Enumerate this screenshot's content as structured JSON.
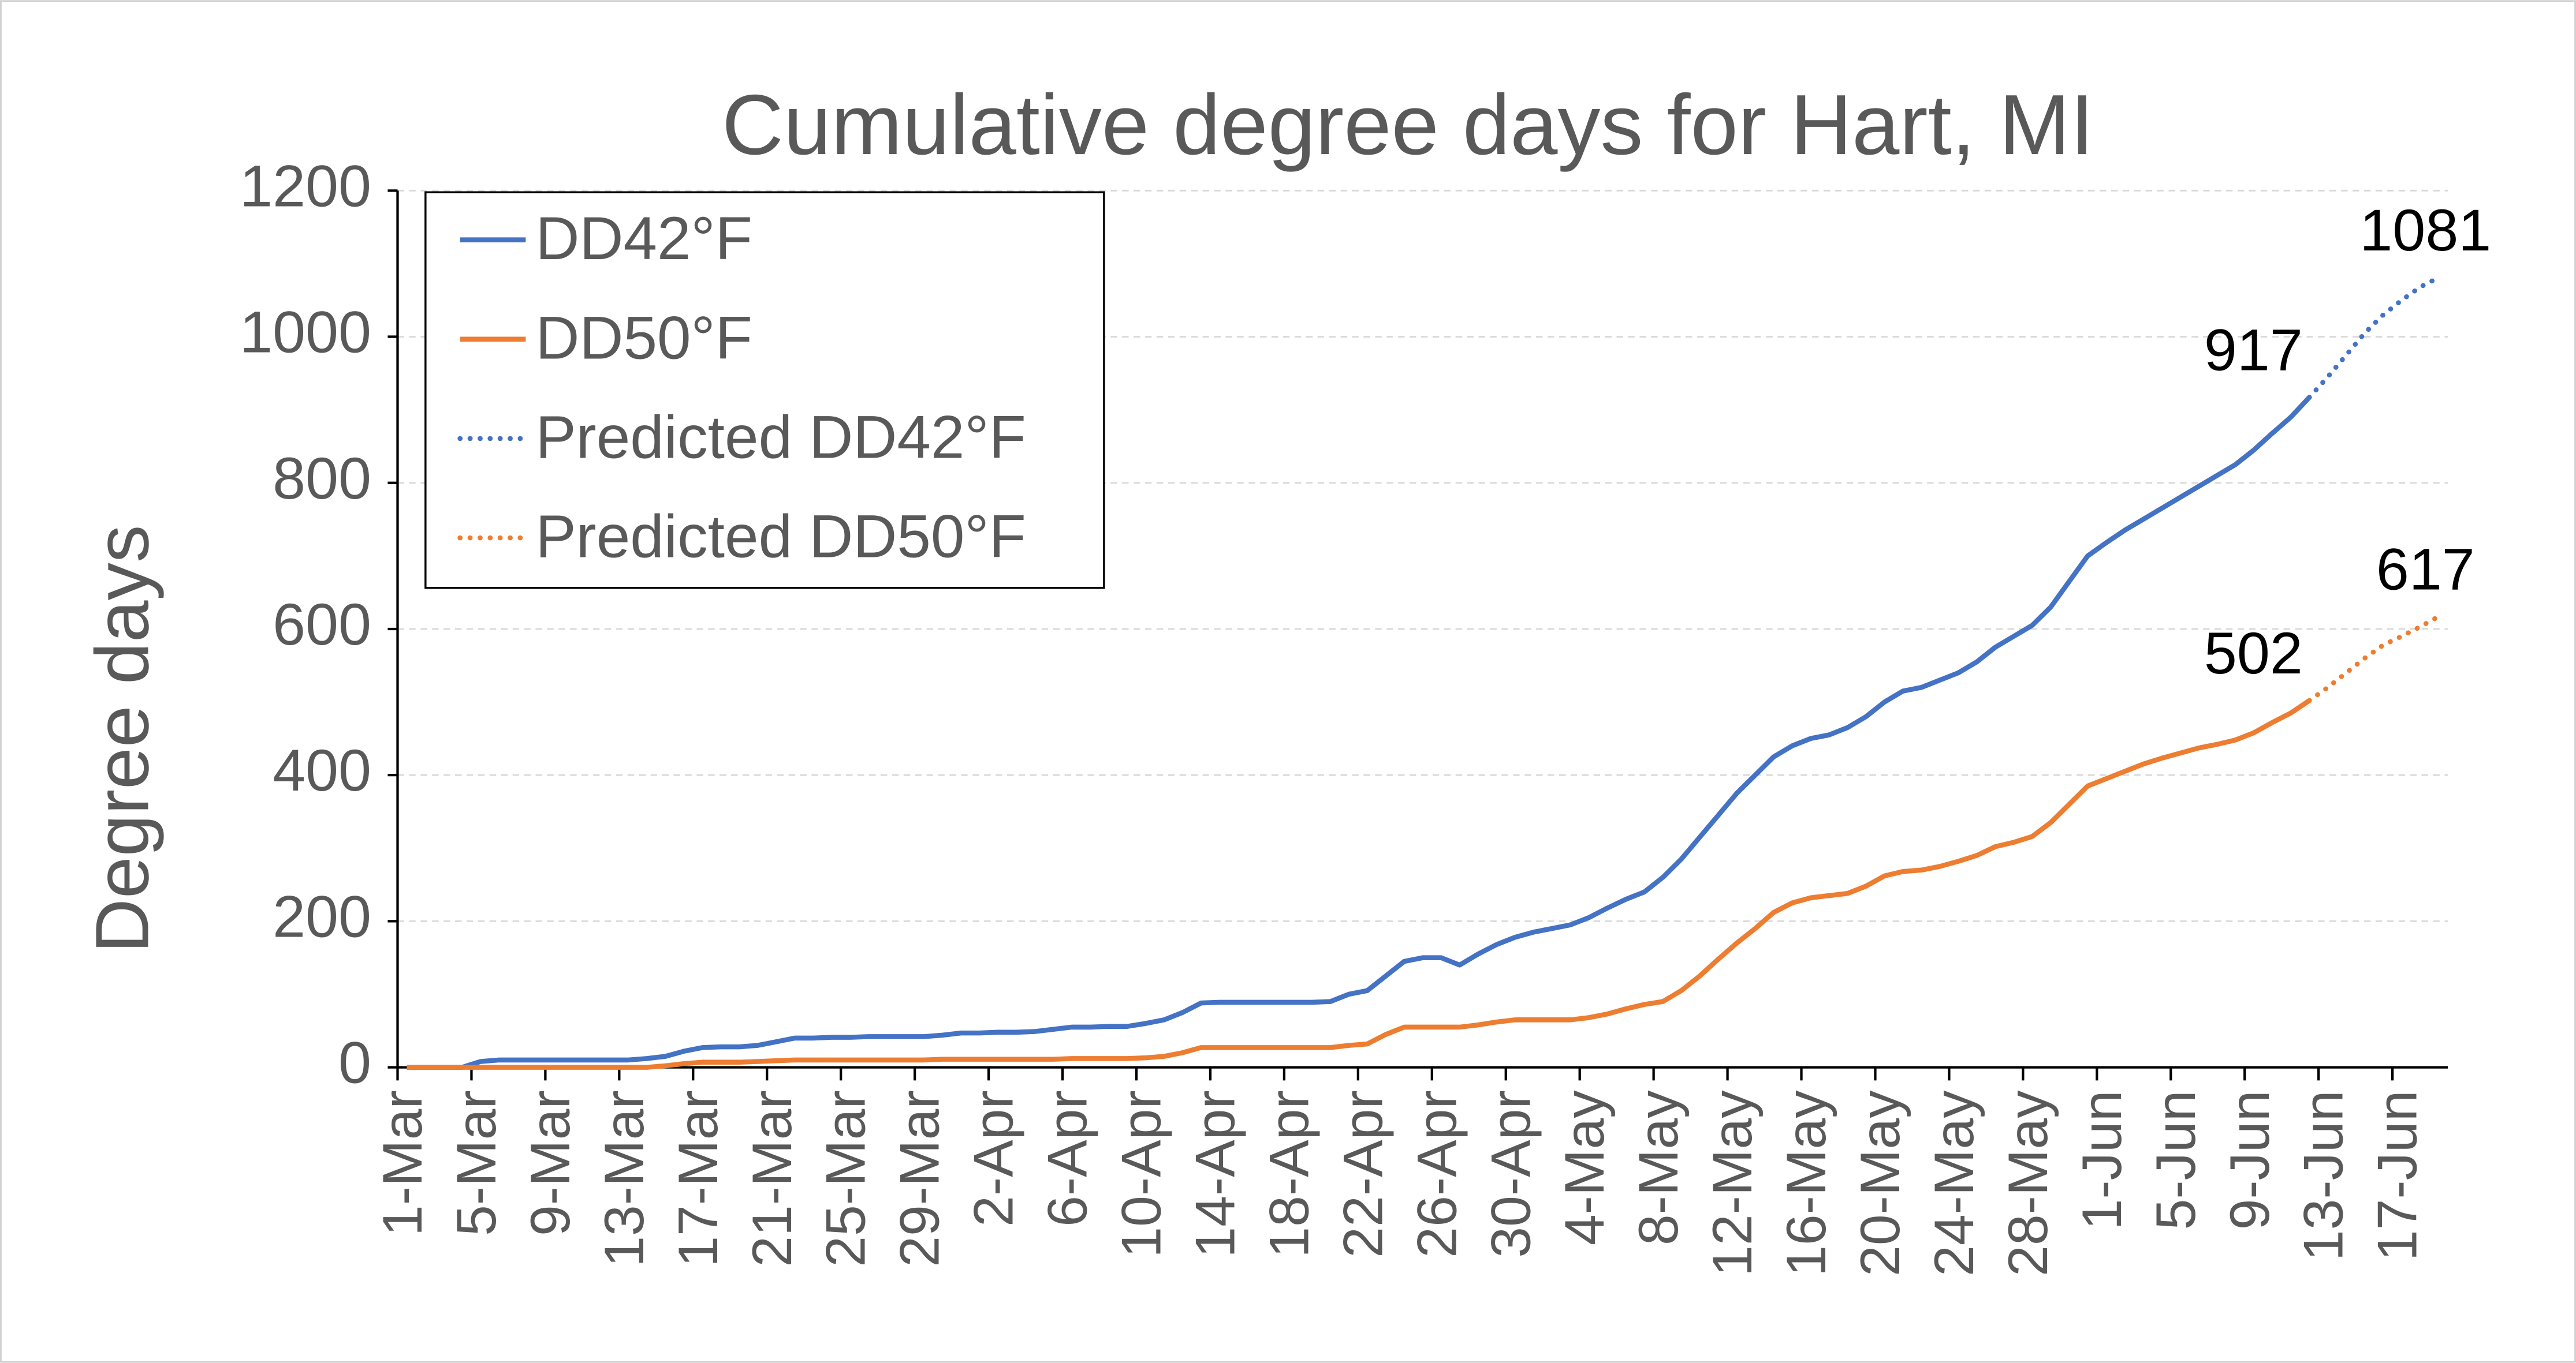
{
  "chart_data": {
    "type": "line",
    "title": "Cumulative degree days for Hart, MI",
    "y_label": "Degree days",
    "categories": [
      "1-Mar",
      null,
      null,
      null,
      "5-Mar",
      null,
      null,
      null,
      "9-Mar",
      null,
      null,
      null,
      "13-Mar",
      null,
      null,
      null,
      "17-Mar",
      null,
      null,
      null,
      "21-Mar",
      null,
      null,
      null,
      "25-Mar",
      null,
      null,
      null,
      "29-Mar",
      null,
      null,
      null,
      "2-Apr",
      null,
      null,
      null,
      "6-Apr",
      null,
      null,
      null,
      "10-Apr",
      null,
      null,
      null,
      "14-Apr",
      null,
      null,
      null,
      "18-Apr",
      null,
      null,
      null,
      "22-Apr",
      null,
      null,
      null,
      "26-Apr",
      null,
      null,
      null,
      "30-Apr",
      null,
      null,
      null,
      "4-May",
      null,
      null,
      null,
      "8-May",
      null,
      null,
      null,
      "12-May",
      null,
      null,
      null,
      "16-May",
      null,
      null,
      null,
      "20-May",
      null,
      null,
      null,
      "24-May",
      null,
      null,
      null,
      "28-May",
      null,
      null,
      null,
      "1-Jun",
      null,
      null,
      null,
      "5-Jun",
      null,
      null,
      null,
      "9-Jun",
      null,
      null,
      null,
      "13-Jun",
      null,
      null,
      null,
      "17-Jun",
      null,
      null
    ],
    "series": [
      {
        "name": "DD42°F",
        "color": "#4472c4",
        "line_style": "solid",
        "values": [
          0,
          0,
          0,
          0,
          8,
          10,
          10,
          10,
          10,
          10,
          10,
          10,
          10,
          12,
          15,
          22,
          27,
          28,
          28,
          30,
          35,
          40,
          40,
          41,
          41,
          42,
          42,
          42,
          42,
          44,
          47,
          47,
          48,
          48,
          49,
          52,
          55,
          55,
          56,
          56,
          60,
          65,
          75,
          88,
          89,
          89,
          89,
          89,
          89,
          89,
          90,
          100,
          105,
          125,
          145,
          150,
          150,
          140,
          155,
          168,
          178,
          185,
          190,
          195,
          205,
          218,
          230,
          240,
          260,
          285,
          315,
          345,
          375,
          400,
          425,
          440,
          450,
          455,
          465,
          480,
          500,
          515,
          520,
          530,
          540,
          555,
          575,
          590,
          605,
          630,
          665,
          700,
          718,
          735,
          750,
          765,
          780,
          795,
          810,
          825,
          845,
          868,
          890,
          917,
          null,
          null,
          null,
          null,
          null,
          null,
          null
        ]
      },
      {
        "name": "DD50°F",
        "color": "#ed7d31",
        "line_style": "solid",
        "values": [
          0,
          0,
          0,
          0,
          0,
          0,
          0,
          0,
          0,
          0,
          0,
          0,
          0,
          0,
          2,
          5,
          7,
          7,
          7,
          8,
          9,
          10,
          10,
          10,
          10,
          10,
          10,
          10,
          10,
          11,
          11,
          11,
          11,
          11,
          11,
          11,
          12,
          12,
          12,
          12,
          13,
          15,
          20,
          27,
          27,
          27,
          27,
          27,
          27,
          27,
          27,
          30,
          32,
          45,
          55,
          55,
          55,
          55,
          58,
          62,
          65,
          65,
          65,
          65,
          68,
          73,
          80,
          86,
          90,
          105,
          125,
          148,
          170,
          190,
          212,
          225,
          232,
          235,
          238,
          248,
          262,
          268,
          270,
          275,
          282,
          290,
          302,
          308,
          316,
          335,
          360,
          385,
          395,
          405,
          415,
          423,
          430,
          437,
          442,
          448,
          458,
          472,
          485,
          502,
          null,
          null,
          null,
          null,
          null,
          null,
          null
        ]
      },
      {
        "name": "Predicted DD42°F",
        "color": "#4472c4",
        "line_style": "dotted",
        "values": [
          null,
          null,
          null,
          null,
          null,
          null,
          null,
          null,
          null,
          null,
          null,
          null,
          null,
          null,
          null,
          null,
          null,
          null,
          null,
          null,
          null,
          null,
          null,
          null,
          null,
          null,
          null,
          null,
          null,
          null,
          null,
          null,
          null,
          null,
          null,
          null,
          null,
          null,
          null,
          null,
          null,
          null,
          null,
          null,
          null,
          null,
          null,
          null,
          null,
          null,
          null,
          null,
          null,
          null,
          null,
          null,
          null,
          null,
          null,
          null,
          null,
          null,
          null,
          null,
          null,
          null,
          null,
          null,
          null,
          null,
          null,
          null,
          null,
          null,
          null,
          null,
          null,
          null,
          null,
          null,
          null,
          null,
          null,
          null,
          null,
          null,
          null,
          null,
          null,
          null,
          null,
          null,
          null,
          null,
          null,
          null,
          null,
          null,
          null,
          null,
          null,
          null,
          null,
          917,
          945,
          975,
          1005,
          1030,
          1050,
          1068,
          1081
        ]
      },
      {
        "name": "Predicted DD50°F",
        "color": "#ed7d31",
        "line_style": "dotted",
        "values": [
          null,
          null,
          null,
          null,
          null,
          null,
          null,
          null,
          null,
          null,
          null,
          null,
          null,
          null,
          null,
          null,
          null,
          null,
          null,
          null,
          null,
          null,
          null,
          null,
          null,
          null,
          null,
          null,
          null,
          null,
          null,
          null,
          null,
          null,
          null,
          null,
          null,
          null,
          null,
          null,
          null,
          null,
          null,
          null,
          null,
          null,
          null,
          null,
          null,
          null,
          null,
          null,
          null,
          null,
          null,
          null,
          null,
          null,
          null,
          null,
          null,
          null,
          null,
          null,
          null,
          null,
          null,
          null,
          null,
          null,
          null,
          null,
          null,
          null,
          null,
          null,
          null,
          null,
          null,
          null,
          null,
          null,
          null,
          null,
          null,
          null,
          null,
          null,
          null,
          null,
          null,
          null,
          null,
          null,
          null,
          null,
          null,
          null,
          null,
          null,
          null,
          null,
          null,
          502,
          520,
          540,
          560,
          578,
          590,
          603,
          617
        ]
      }
    ],
    "ylim": [
      0,
      1200
    ],
    "yticks": [
      0,
      200,
      400,
      600,
      800,
      1000,
      1200
    ],
    "grid": true,
    "legend": "top-left"
  }
}
